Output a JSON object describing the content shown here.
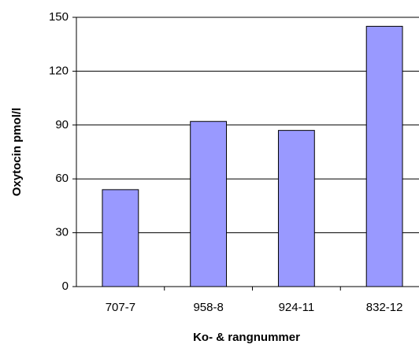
{
  "chart_data": {
    "type": "bar",
    "x_label": "Ko- & rangnummer",
    "y_label": "Oxytocin pmol/l",
    "categories": [
      "707-7",
      "958-8",
      "924-11",
      "832-12"
    ],
    "values": [
      54,
      92,
      87,
      145
    ],
    "color": "#9999ff",
    "ylim": [
      0,
      150
    ],
    "yticks": [
      0,
      30,
      60,
      90,
      120,
      150
    ],
    "grid": true
  }
}
